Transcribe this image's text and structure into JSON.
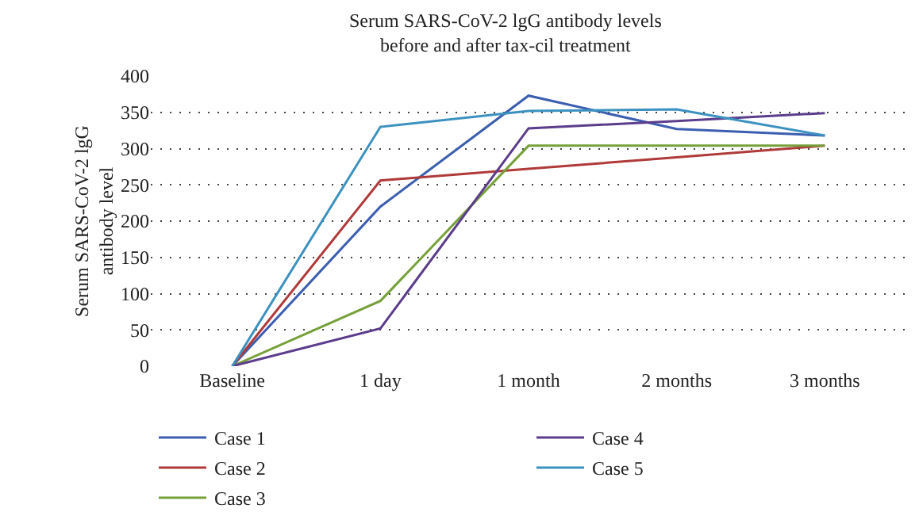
{
  "chart_data": {
    "type": "line",
    "title": "Serum SARS-CoV-2 lgG antibody levels\nbefore and after tax-cil treatment",
    "ylabel": "Serum SARS-CoV-2 lgG\nantibody level",
    "categories": [
      "Baseline",
      "1 day",
      "1 month",
      "2 months",
      "3 months"
    ],
    "series": [
      {
        "name": "Case 1",
        "color": "#3b5eb0",
        "values": [
          0,
          220,
          373,
          327,
          318
        ]
      },
      {
        "name": "Case 2",
        "color": "#b03a3a",
        "values": [
          0,
          256,
          272,
          288,
          304
        ]
      },
      {
        "name": "Case 3",
        "color": "#76a03a",
        "values": [
          0,
          90,
          304,
          304,
          304
        ]
      },
      {
        "name": "Case 4",
        "color": "#5b3d8c",
        "values": [
          0,
          52,
          328,
          338,
          349
        ]
      },
      {
        "name": "Case 5",
        "color": "#3b91c0",
        "values": [
          0,
          330,
          352,
          354,
          318
        ]
      }
    ],
    "ylim": [
      0,
      400
    ],
    "yticks": [
      0,
      50,
      100,
      150,
      200,
      250,
      300,
      350,
      400
    ],
    "grid": "y",
    "legend": "bottom",
    "marker": "none",
    "line_style": "solid"
  }
}
